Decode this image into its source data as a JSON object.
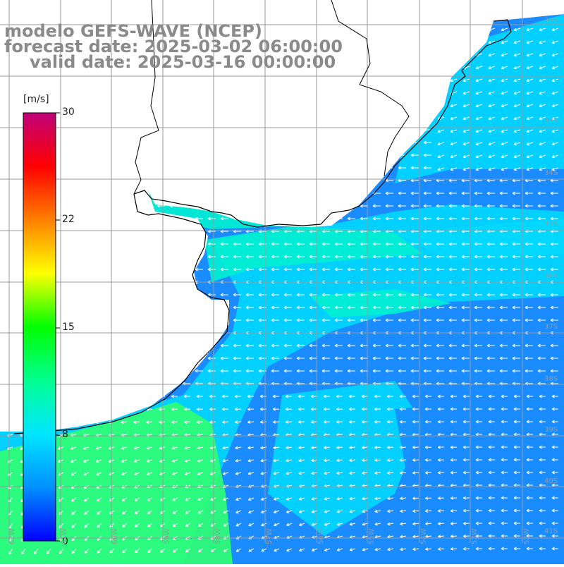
{
  "title": {
    "line1": "modelo GEFS-WAVE (NCEP)",
    "line2": "forecast date: 2025-03-02 06:00:00",
    "line3": "valid date: 2025-03-16 00:00:00"
  },
  "colorbar": {
    "unit": "[m/s]",
    "ticks": [
      "30",
      "22",
      "15",
      "8",
      "0"
    ],
    "colors": [
      "#0000ff",
      "#0090ff",
      "#00e6ff",
      "#00ff90",
      "#00ff00",
      "#ffff00",
      "#ff8000",
      "#ff0000",
      "#c0007a"
    ]
  },
  "map": {
    "field_colors": {
      "deep_blue": "#1a8cff",
      "cyan": "#00d8ff",
      "aqua": "#00f0d0",
      "green": "#30ff70",
      "land": "#ffffff",
      "grid": "#9a9a9a",
      "coast": "#000000",
      "arrow": "#ffffff"
    },
    "lat_labels": [
      "33S",
      "34S",
      "35S",
      "36S",
      "37S",
      "38S",
      "39S",
      "40S",
      "41S"
    ],
    "lon_labels": [
      "62W",
      "61W",
      "60W",
      "59W",
      "58W",
      "57W",
      "56W",
      "55W",
      "54W",
      "53W",
      "52W"
    ]
  }
}
